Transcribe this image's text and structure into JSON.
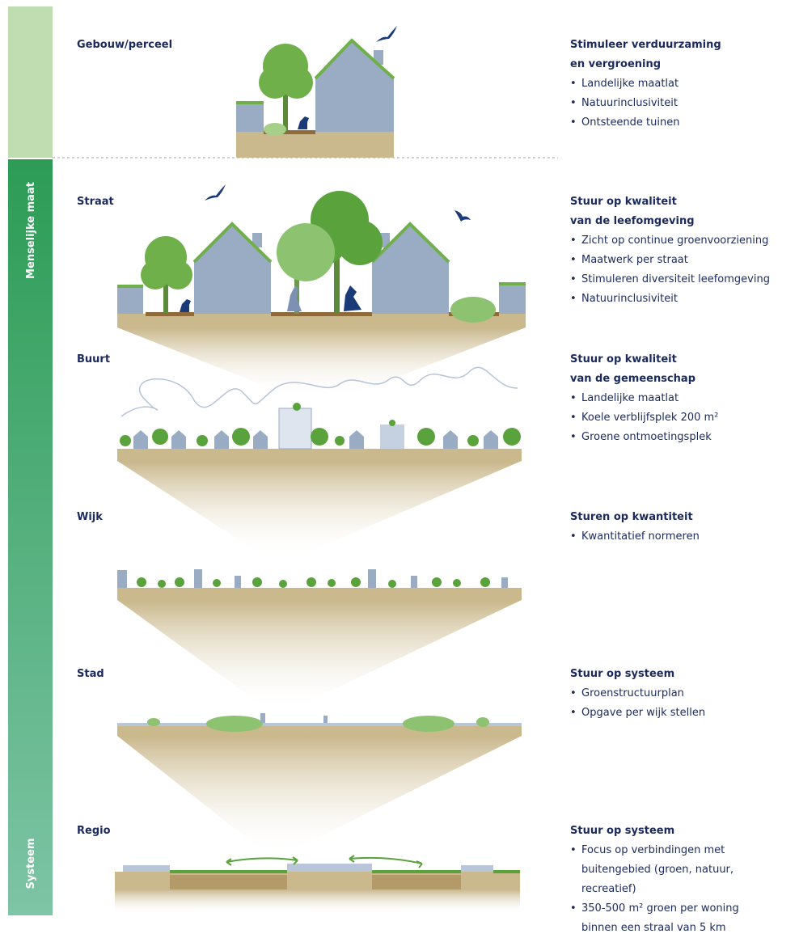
{
  "sidebar": {
    "upper_label": "Menselijke maat",
    "lower_label": "Systeem"
  },
  "levels": [
    {
      "name": "Gebouw/perceel",
      "heading": [
        "Stimuleer verduurzaming",
        "en vergroening"
      ],
      "items": [
        "Landelijke maatlat",
        "Natuurinclusiviteit",
        "Ontsteende tuinen"
      ]
    },
    {
      "name": "Straat",
      "heading": [
        "Stuur op kwaliteit",
        "van de leefomgeving"
      ],
      "items": [
        "Zicht op continue groenvoorziening",
        "Maatwerk per straat",
        "Stimuleren diversiteit leefomgeving",
        "Natuurinclusiviteit"
      ]
    },
    {
      "name": "Buurt",
      "heading": [
        "Stuur op kwaliteit",
        "van de gemeenschap"
      ],
      "items": [
        "Landelijke maatlat",
        "Koele verblijfsplek 200 m²",
        "Groene ontmoetingsplek"
      ]
    },
    {
      "name": "Wijk",
      "heading": [
        "Sturen op kwantiteit"
      ],
      "items": [
        "Kwantitatief normeren"
      ]
    },
    {
      "name": "Stad",
      "heading": [
        "Stuur op systeem"
      ],
      "items": [
        "Groenstructuurplan",
        "Opgave per wijk stellen"
      ]
    },
    {
      "name": "Regio",
      "heading": [
        "Stuur op systeem"
      ],
      "items": [
        "Focus op verbindingen met buitengebied (groen, natuur, recreatief)",
        "350-500 m² groen per woning binnen een straal van 5 km"
      ]
    }
  ]
}
